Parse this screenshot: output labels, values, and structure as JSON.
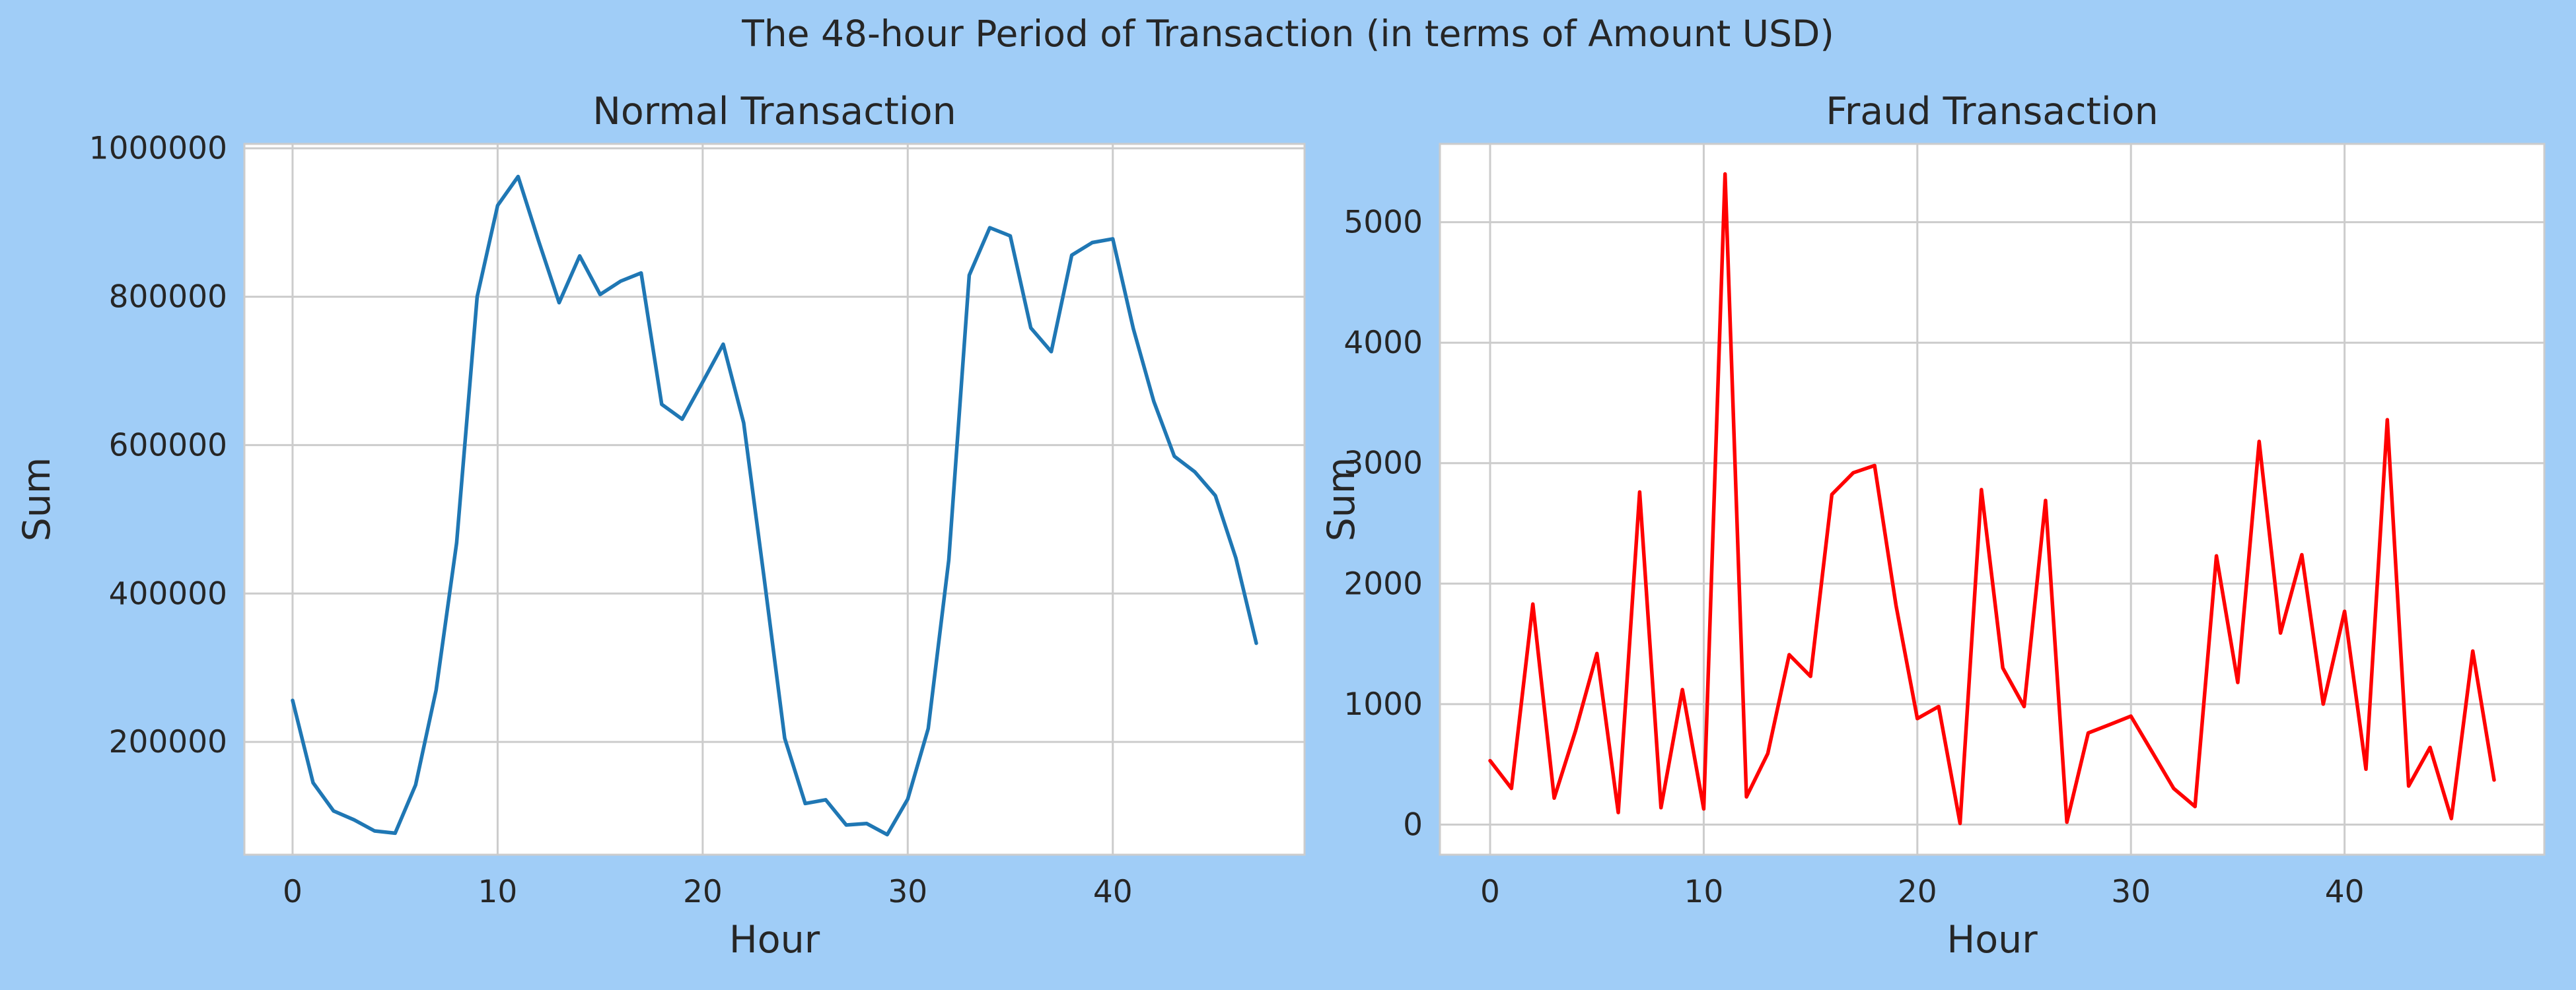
{
  "suptitle": "The 48-hour Period of Transaction (in terms of Amount USD)",
  "chart_data": [
    {
      "type": "line",
      "title": "Normal Transaction",
      "xlabel": "Hour",
      "ylabel": "Sum",
      "xlim": [
        -2.35,
        49.35
      ],
      "ylim": [
        48000,
        1006000
      ],
      "xticks": [
        0,
        10,
        20,
        30,
        40
      ],
      "yticks": [
        200000,
        400000,
        600000,
        800000,
        1000000
      ],
      "grid": true,
      "color": "#1f77b4",
      "x": [
        0,
        1,
        2,
        3,
        4,
        5,
        6,
        7,
        8,
        9,
        10,
        11,
        12,
        13,
        14,
        15,
        16,
        17,
        18,
        19,
        20,
        21,
        22,
        23,
        24,
        25,
        26,
        27,
        28,
        29,
        30,
        31,
        32,
        33,
        34,
        35,
        36,
        37,
        38,
        39,
        40,
        41,
        42,
        43,
        44,
        45,
        46,
        47
      ],
      "values": [
        256000,
        145000,
        107000,
        95000,
        80000,
        77000,
        142000,
        270000,
        468000,
        800000,
        923000,
        962000,
        875000,
        792000,
        855000,
        803000,
        821000,
        832000,
        655000,
        635000,
        685000,
        736000,
        630000,
        420000,
        205000,
        117000,
        122000,
        88000,
        90000,
        75000,
        123000,
        218000,
        445000,
        829000,
        893000,
        882000,
        758000,
        726000,
        856000,
        873000,
        878000,
        757000,
        659000,
        585000,
        564000,
        532000,
        448000,
        333000
      ]
    },
    {
      "type": "line",
      "title": "Fraud Transaction",
      "xlabel": "Hour",
      "ylabel": "Sum",
      "xlim": [
        -2.35,
        49.35
      ],
      "ylim": [
        -250,
        5650
      ],
      "xticks": [
        0,
        10,
        20,
        30,
        40
      ],
      "yticks": [
        0,
        1000,
        2000,
        3000,
        4000,
        5000
      ],
      "grid": true,
      "color": "#ff0000",
      "x": [
        0,
        1,
        2,
        3,
        4,
        5,
        6,
        7,
        8,
        9,
        10,
        11,
        12,
        13,
        14,
        15,
        16,
        17,
        18,
        19,
        20,
        21,
        22,
        23,
        24,
        25,
        26,
        27,
        28,
        29,
        30,
        31,
        32,
        33,
        34,
        35,
        36,
        37,
        38,
        39,
        40,
        41,
        42,
        43,
        44,
        45,
        46,
        47
      ],
      "values": [
        530,
        300,
        1830,
        220,
        780,
        1420,
        100,
        2760,
        140,
        1120,
        130,
        5400,
        230,
        590,
        1410,
        1230,
        2740,
        2920,
        2980,
        1820,
        880,
        980,
        10,
        2780,
        1300,
        980,
        2690,
        20,
        760,
        830,
        900,
        600,
        300,
        150,
        2230,
        1180,
        3180,
        1590,
        2240,
        1000,
        1770,
        460,
        3360,
        320,
        640,
        50,
        1440,
        370
      ]
    }
  ]
}
